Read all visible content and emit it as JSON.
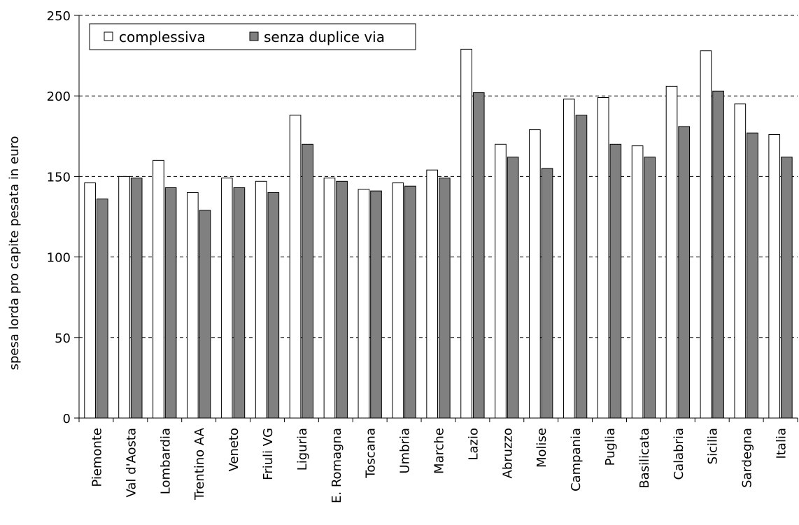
{
  "chart_data": {
    "type": "bar",
    "ylabel": "spesa lorda pro capite pesata in euro",
    "xlabel": "",
    "ylim": [
      0,
      250
    ],
    "yticks": [
      0,
      50,
      100,
      150,
      200,
      250
    ],
    "grid": "horizontal dashed",
    "legend_position": "top-left",
    "categories": [
      "Piemonte",
      "Val d'Aosta",
      "Lombardia",
      "Trentino AA",
      "Veneto",
      "Friuli VG",
      "Liguria",
      "E. Romagna",
      "Toscana",
      "Umbria",
      "Marche",
      "Lazio",
      "Abruzzo",
      "Molise",
      "Campania",
      "Puglia",
      "Basilicata",
      "Calabria",
      "Sicilia",
      "Sardegna",
      "Italia"
    ],
    "series": [
      {
        "name": "complessiva",
        "color": "#ffffff",
        "values": [
          146,
          150,
          160,
          140,
          149,
          147,
          188,
          149,
          142,
          146,
          154,
          229,
          170,
          179,
          198,
          199,
          169,
          206,
          228,
          195,
          176
        ]
      },
      {
        "name": "senza duplice via",
        "color": "#808080",
        "values": [
          136,
          149,
          143,
          129,
          143,
          140,
          170,
          147,
          141,
          144,
          149,
          202,
          162,
          155,
          188,
          170,
          162,
          181,
          203,
          177,
          162
        ]
      }
    ]
  }
}
